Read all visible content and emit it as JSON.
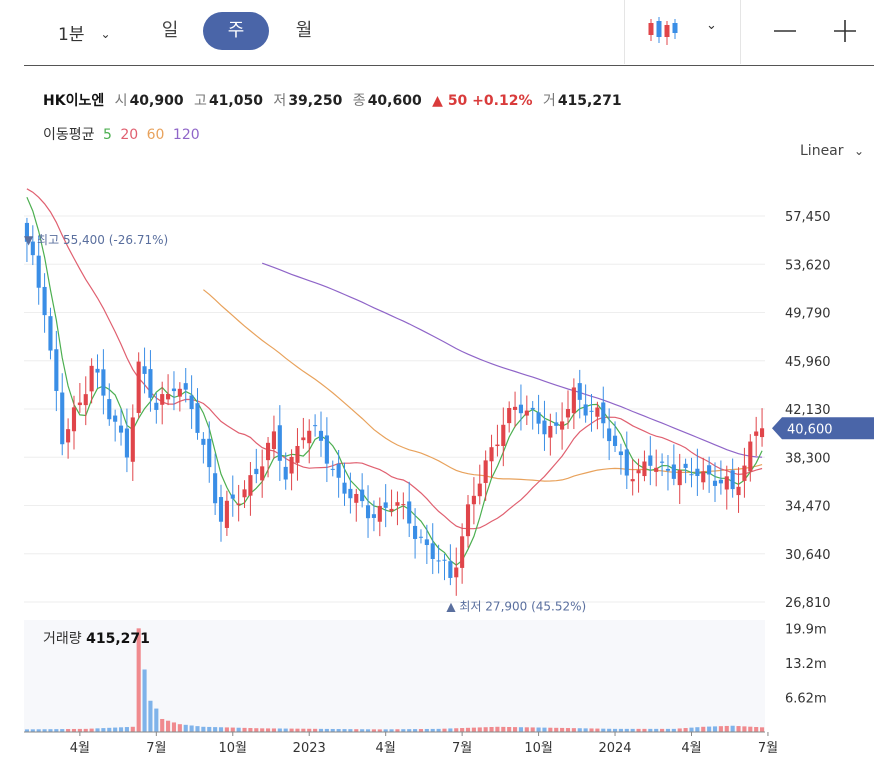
{
  "toolbar": {
    "interval_label": "1분",
    "tabs": [
      "일",
      "주",
      "월"
    ],
    "active_tab": "주",
    "chart_type_icon": "candlestick-icon",
    "zoom_out_icon": "minus-icon",
    "zoom_in_icon": "plus-icon"
  },
  "quote": {
    "name": "HK이노엔",
    "open_label": "시",
    "open": "40,900",
    "high_label": "고",
    "high": "41,050",
    "low_label": "저",
    "low": "39,250",
    "close_label": "종",
    "close": "40,600",
    "change": "▲ 50 +0.12%",
    "volume_label": "거",
    "volume": "415,271"
  },
  "ma_legend": {
    "label": "이동평균",
    "periods": [
      "5",
      "20",
      "60",
      "120"
    ]
  },
  "scale_type": "Linear",
  "volume_panel": {
    "label": "거래량",
    "value": "415,271"
  },
  "colors": {
    "up": "#e0454a",
    "down": "#3a8ee6",
    "ma5": "#4caf50",
    "ma20": "#e06070",
    "ma60": "#e8a25c",
    "ma120": "#8f65c8",
    "current_tag": "#4a65a8"
  },
  "chart_data": {
    "type": "candlestick",
    "y_ticks": [
      "57,450",
      "53,620",
      "49,790",
      "45,960",
      "42,130",
      "38,300",
      "34,470",
      "30,640",
      "26,810"
    ],
    "y_tick_values": [
      57450,
      53620,
      49790,
      45960,
      42130,
      38300,
      34470,
      30640,
      26810
    ],
    "x_ticks": [
      "4월",
      "7월",
      "10월",
      "2023",
      "4월",
      "7월",
      "10월",
      "2024",
      "4월",
      "7월"
    ],
    "x_tick_week_index": [
      9,
      22,
      35,
      48,
      61,
      74,
      87,
      100,
      113,
      126
    ],
    "current_price": 40600,
    "current_label": "40,600",
    "high_marker": {
      "label": "최고",
      "value": "55,400 (-26.71%)",
      "price": 55400,
      "week_index": 0
    },
    "low_marker": {
      "label": "최저",
      "value": "27,900 (45.52%)",
      "price": 27900,
      "week_index": 72
    },
    "volume_ticks": [
      "19.9m",
      "13.2m",
      "6.62m"
    ],
    "volume_tick_values": [
      19.9,
      13.2,
      6.62
    ],
    "anchors": [
      [
        0,
        55000
      ],
      [
        3,
        50500
      ],
      [
        6,
        39500
      ],
      [
        9,
        42500
      ],
      [
        11,
        46000
      ],
      [
        14,
        41500
      ],
      [
        17,
        39000
      ],
      [
        19,
        45500
      ],
      [
        22,
        42000
      ],
      [
        25,
        44500
      ],
      [
        28,
        42000
      ],
      [
        31,
        37500
      ],
      [
        33,
        33500
      ],
      [
        36,
        35000
      ],
      [
        39,
        37500
      ],
      [
        42,
        39500
      ],
      [
        44,
        37000
      ],
      [
        47,
        40500
      ],
      [
        50,
        39500
      ],
      [
        53,
        36500
      ],
      [
        56,
        34500
      ],
      [
        59,
        34000
      ],
      [
        62,
        34500
      ],
      [
        65,
        33500
      ],
      [
        68,
        31000
      ],
      [
        72,
        28800
      ],
      [
        75,
        34000
      ],
      [
        78,
        37500
      ],
      [
        81,
        41500
      ],
      [
        84,
        42000
      ],
      [
        87,
        41500
      ],
      [
        90,
        40000
      ],
      [
        93,
        43500
      ],
      [
        96,
        42000
      ],
      [
        99,
        40000
      ],
      [
        102,
        37500
      ],
      [
        104,
        36500
      ],
      [
        106,
        38000
      ],
      [
        109,
        37500
      ],
      [
        112,
        36500
      ],
      [
        114,
        37500
      ],
      [
        117,
        36500
      ],
      [
        120,
        35500
      ],
      [
        122,
        38000
      ],
      [
        124,
        40500
      ],
      [
        125,
        40600
      ]
    ],
    "volume_anchors": [
      [
        0,
        0.5
      ],
      [
        10,
        0.6
      ],
      [
        18,
        1.0
      ],
      [
        19,
        19.9
      ],
      [
        20,
        12.0
      ],
      [
        21,
        6.0
      ],
      [
        22,
        4.5
      ],
      [
        23,
        2.5
      ],
      [
        26,
        1.5
      ],
      [
        30,
        1.0
      ],
      [
        40,
        0.7
      ],
      [
        50,
        0.6
      ],
      [
        60,
        0.5
      ],
      [
        70,
        0.6
      ],
      [
        80,
        1.0
      ],
      [
        90,
        0.8
      ],
      [
        100,
        0.6
      ],
      [
        110,
        0.6
      ],
      [
        115,
        1.0
      ],
      [
        120,
        1.2
      ],
      [
        125,
        0.9
      ]
    ]
  }
}
